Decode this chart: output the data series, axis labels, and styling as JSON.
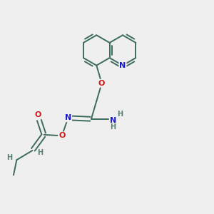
{
  "background_color": "#efefef",
  "bond_color": "#3d6b5e",
  "bond_width": 1.4,
  "atom_colors": {
    "N": "#1a1acc",
    "O": "#cc1a1a",
    "C": "#3d6b5e",
    "H": "#5a8070"
  },
  "figsize": [
    3.0,
    3.0
  ],
  "dpi": 100,
  "xlim": [
    0,
    10
  ],
  "ylim": [
    0,
    10
  ]
}
